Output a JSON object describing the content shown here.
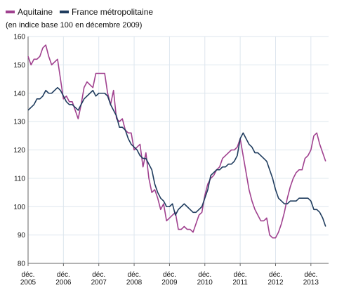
{
  "chart_data": {
    "type": "line",
    "subtitle": "(en indice base 100 en décembre 2009)",
    "ylim": [
      80,
      160
    ],
    "yticks": [
      80,
      90,
      100,
      110,
      120,
      130,
      140,
      150,
      160
    ],
    "xlim": [
      0,
      102
    ],
    "xtick_labels": [
      {
        "pos": 0,
        "month": "déc.",
        "year": "2005"
      },
      {
        "pos": 12,
        "month": "déc.",
        "year": "2006"
      },
      {
        "pos": 24,
        "month": "déc.",
        "year": "2007"
      },
      {
        "pos": 36,
        "month": "déc.",
        "year": "2008"
      },
      {
        "pos": 48,
        "month": "déc.",
        "year": "2009"
      },
      {
        "pos": 60,
        "month": "déc.",
        "year": "2010"
      },
      {
        "pos": 72,
        "month": "déc.",
        "year": "2011"
      },
      {
        "pos": 84,
        "month": "déc.",
        "year": "2012"
      },
      {
        "pos": 96,
        "month": "déc.",
        "year": "2013"
      }
    ],
    "grid": true,
    "legend_position": "top-left",
    "series": [
      {
        "name": "Aquitaine",
        "color": "#a0418f",
        "values": [
          153,
          150,
          152,
          152,
          153,
          156,
          157,
          153,
          150,
          151,
          152,
          145,
          138,
          139,
          137,
          137,
          134,
          131,
          136,
          142,
          144,
          143,
          142,
          147,
          147,
          147,
          147,
          140,
          136,
          141,
          131,
          130,
          131,
          127,
          126,
          126,
          120,
          121,
          122,
          114,
          119,
          110,
          105,
          106,
          103,
          99,
          101,
          95,
          96,
          97,
          98,
          92,
          92,
          93,
          92,
          92,
          91,
          94,
          97,
          98,
          104,
          108,
          110,
          111,
          113,
          114,
          117,
          118,
          119,
          120,
          120,
          121,
          124,
          118,
          112,
          106,
          102,
          99,
          97,
          95,
          95,
          96,
          90,
          89,
          89,
          91,
          94,
          98,
          103,
          107,
          110,
          112,
          113,
          113,
          117,
          118,
          120,
          125,
          126,
          122,
          119,
          116
        ]
      },
      {
        "name": "France métropolitaine",
        "color": "#1f3c5e",
        "values": [
          134,
          135,
          136,
          138,
          138,
          139,
          141,
          140,
          140,
          141,
          142,
          141,
          139,
          137,
          136,
          136,
          135,
          134,
          136,
          138,
          139,
          140,
          141,
          139,
          140,
          140,
          140,
          139,
          136,
          134,
          132,
          128,
          128,
          127,
          124,
          122,
          121,
          120,
          118,
          117,
          117,
          115,
          113,
          108,
          105,
          103,
          102,
          100,
          100,
          101,
          97,
          99,
          100,
          101,
          100,
          99,
          98,
          98,
          99,
          100,
          103,
          106,
          111,
          112,
          113,
          113,
          114,
          114,
          115,
          115,
          116,
          118,
          124,
          126,
          124,
          122,
          121,
          119,
          119,
          118,
          117,
          116,
          113,
          110,
          106,
          103,
          102,
          101,
          101,
          102,
          102,
          102,
          103,
          103,
          103,
          103,
          102,
          99,
          99,
          98,
          96,
          93
        ]
      }
    ]
  }
}
